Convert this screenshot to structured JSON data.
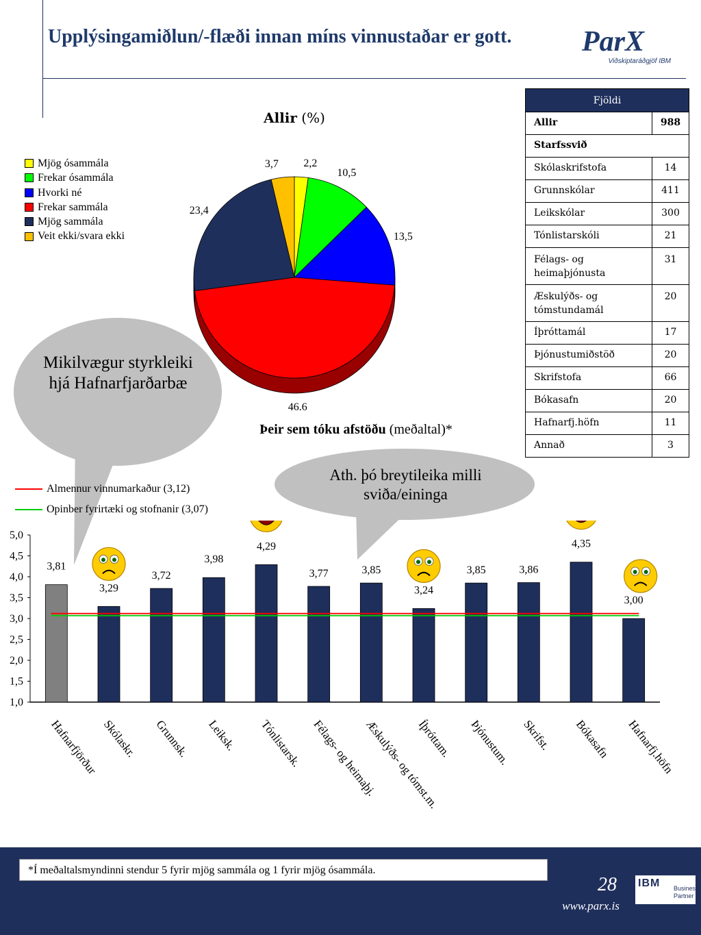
{
  "header": {
    "title": "Upplýsingamiðlun/-flæði innan míns vinnustaðar er gott.",
    "logo_name": "ParX",
    "logo_subtitle": "Viðskiptaráðgjöf IBM"
  },
  "count_table": {
    "header": "Fjöldi",
    "total_label": "Allir",
    "total_value": "988",
    "section_label": "Starfssvið",
    "rows": [
      {
        "label": "Skólaskrifstofa",
        "value": "14"
      },
      {
        "label": "Grunnskólar",
        "value": "411"
      },
      {
        "label": "Leikskólar",
        "value": "300"
      },
      {
        "label": "Tónlistarskóli",
        "value": "21"
      },
      {
        "label": "Félags- og heimaþjónusta",
        "value": "31"
      },
      {
        "label": "Æskulýðs- og tómstundamál",
        "value": "20"
      },
      {
        "label": "Íþróttamál",
        "value": "17"
      },
      {
        "label": "Þjónustumiðstöð",
        "value": "20"
      },
      {
        "label": "Skrifstofa",
        "value": "66"
      },
      {
        "label": "Bókasafn",
        "value": "20"
      },
      {
        "label": "Hafnarfj.höfn",
        "value": "11"
      },
      {
        "label": "Annað",
        "value": "3"
      }
    ]
  },
  "bubbles": {
    "strength": "Mikilvægur styrkleiki hjá Hafnarfjarðarbæ",
    "note": "Ath. þó breytileika milli sviða/eininga"
  },
  "chart_data": [
    {
      "type": "pie",
      "title_bold": "Allir",
      "title_rest": "(%)",
      "slices": [
        {
          "name": "Mjög ósammála",
          "value": 2.2,
          "label": "2,2",
          "color": "#ffff00"
        },
        {
          "name": "Frekar ósammála",
          "value": 10.5,
          "label": "10,5",
          "color": "#00ff00"
        },
        {
          "name": "Hvorki né",
          "value": 13.5,
          "label": "13,5",
          "color": "#0000ff"
        },
        {
          "name": "Frekar sammála",
          "value": 46.6,
          "label": "46.6",
          "color": "#ff0000"
        },
        {
          "name": "Mjög sammála",
          "value": 23.4,
          "label": "23,4",
          "color": "#1f2f5c"
        },
        {
          "name": "Veit ekki/svara ekki",
          "value": 3.7,
          "label": "3,7",
          "color": "#ffc000"
        }
      ],
      "legend": "left"
    },
    {
      "type": "bar",
      "title_bold": "Þeir sem tóku afstöðu",
      "title_rest": "(meðaltal)*",
      "categories": [
        "Hafnarfjörður",
        "Skólaskr.",
        "Grunnsk.",
        "Leiksk.",
        "Tónlistarsk.",
        "Félags- og heimaþj.",
        "Æskulýðs- og tómst.m.",
        "Íþróttam.",
        "Þjónustum.",
        "Skrifst.",
        "Bókasafn",
        "Hafnarfj.höfn"
      ],
      "values": [
        3.81,
        3.29,
        3.72,
        3.98,
        4.29,
        3.77,
        3.85,
        3.24,
        3.85,
        3.86,
        4.35,
        3.0
      ],
      "value_labels": [
        "3,81",
        "3,29",
        "3,72",
        "3,98",
        "4,29",
        "3,77",
        "3,85",
        "3,24",
        "3,85",
        "3,86",
        "4,35",
        "3,00"
      ],
      "bar_colors": [
        "#808080",
        "#1f2f5c",
        "#1f2f5c",
        "#1f2f5c",
        "#1f2f5c",
        "#1f2f5c",
        "#1f2f5c",
        "#1f2f5c",
        "#1f2f5c",
        "#1f2f5c",
        "#1f2f5c",
        "#1f2f5c"
      ],
      "ylim": [
        1.0,
        5.0
      ],
      "yticks": [
        "1,0",
        "1,5",
        "2,0",
        "2,5",
        "3,0",
        "3,5",
        "4,0",
        "4,5",
        "5,0"
      ],
      "reference_lines": [
        {
          "name": "Almennur vinnumarkaður (3,12)",
          "value": 3.12,
          "color": "#ff0000"
        },
        {
          "name": "Opinber fyrirtæki og stofnanir (3,07)",
          "value": 3.07,
          "color": "#00cc00"
        }
      ],
      "faces": [
        {
          "category": "Skólaskr.",
          "mood": "sad"
        },
        {
          "category": "Tónlistarsk.",
          "mood": "happy"
        },
        {
          "category": "Íþróttam.",
          "mood": "sad"
        },
        {
          "category": "Bókasafn",
          "mood": "happy"
        },
        {
          "category": "Hafnarfj.höfn",
          "mood": "sad"
        }
      ]
    }
  ],
  "footer": {
    "note": "*Í meðaltalsmyndinni stendur 5 fyrir mjög sammála og 1 fyrir mjög ósammála.",
    "page_number": "28",
    "url": "www.parx.is",
    "partner_brand": "IBM",
    "partner_line1": "Business",
    "partner_line2": "Partner"
  }
}
